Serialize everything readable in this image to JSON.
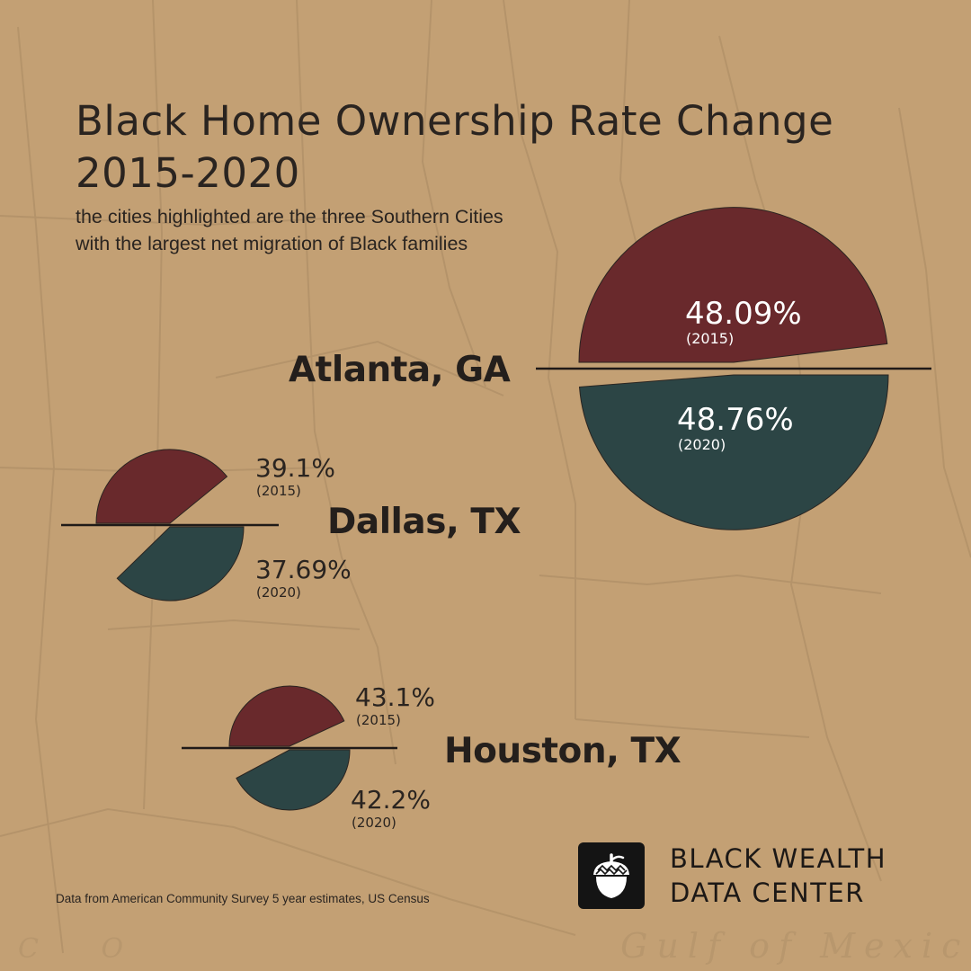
{
  "chart_data": {
    "type": "pie",
    "title_line1": "Black Home Ownership Rate  Change",
    "title_line2": "2015-2020",
    "subtitle_line1": "the cities highlighted are the three Southern Cities",
    "subtitle_line2": "with the largest net migration of Black families",
    "year_labels": [
      "(2015)",
      "(2020)"
    ],
    "series": [
      {
        "name": "2015",
        "color": "#69292c"
      },
      {
        "name": "2020",
        "color": "#2c4545"
      }
    ],
    "cities": [
      {
        "name": "Atlanta, GA",
        "value_2015": 48.09,
        "value_2020": 48.76,
        "label_2015": "48.09%",
        "label_2020": "48.76%"
      },
      {
        "name": "Dallas, TX",
        "value_2015": 39.1,
        "value_2020": 37.69,
        "label_2015": "39.1%",
        "label_2020": "37.69%"
      },
      {
        "name": "Houston, TX",
        "value_2015": 43.1,
        "value_2020": 42.2,
        "label_2015": "43.1%",
        "label_2020": "42.2%"
      }
    ],
    "source": "Data from American Community Survey 5 year estimates, US Census"
  },
  "brand": {
    "line1": "BLACK WEALTH",
    "line2": "DATA CENTER"
  }
}
